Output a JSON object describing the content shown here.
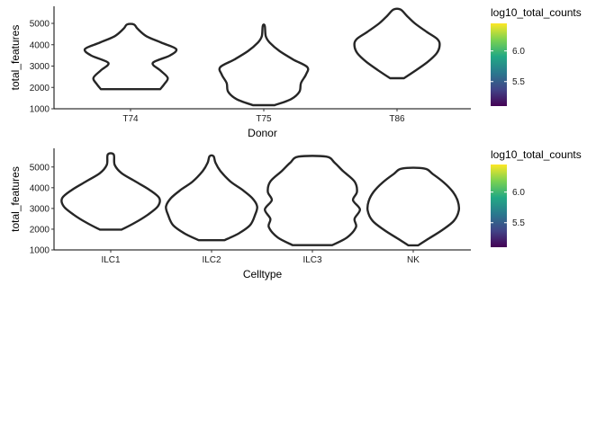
{
  "colors": {
    "violin_stroke": "#262626",
    "axis_line": "#000000",
    "tick_color": "#333333",
    "gradient_stops": [
      "#440154",
      "#414487",
      "#2a788e",
      "#22a884",
      "#7ad151",
      "#fde725"
    ]
  },
  "chart_data": [
    {
      "type": "violin",
      "xlabel": "Donor",
      "ylabel": "total_features",
      "categories": [
        "T74",
        "T75",
        "T86"
      ],
      "ylim": [
        1000,
        5800
      ],
      "yticks": [
        1000,
        2000,
        3000,
        4000,
        5000
      ],
      "grid": false,
      "legend": {
        "title": "log10_total_counts",
        "colorscale": "viridis",
        "ticks": [
          6.0,
          5.5
        ],
        "range": [
          5.1,
          6.45
        ],
        "placement": "right"
      },
      "violins": [
        {
          "category": "T74",
          "ymin": 1920,
          "ymax": 4950,
          "profile": [
            [
              1920,
              0.6
            ],
            [
              2150,
              0.68
            ],
            [
              2450,
              0.75
            ],
            [
              2800,
              0.6
            ],
            [
              3150,
              0.45
            ],
            [
              3500,
              0.8
            ],
            [
              3800,
              0.92
            ],
            [
              4100,
              0.62
            ],
            [
              4400,
              0.32
            ],
            [
              4750,
              0.14
            ],
            [
              4950,
              0.07
            ]
          ]
        },
        {
          "category": "T75",
          "ymin": 1170,
          "ymax": 4880,
          "profile": [
            [
              1170,
              0.22
            ],
            [
              1450,
              0.55
            ],
            [
              1800,
              0.72
            ],
            [
              2200,
              0.75
            ],
            [
              2600,
              0.85
            ],
            [
              2950,
              0.88
            ],
            [
              3300,
              0.6
            ],
            [
              3700,
              0.32
            ],
            [
              4100,
              0.12
            ],
            [
              4400,
              0.04
            ],
            [
              4880,
              0.02
            ]
          ]
        },
        {
          "category": "T86",
          "ymin": 2430,
          "ymax": 5650,
          "profile": [
            [
              2430,
              0.14
            ],
            [
              2800,
              0.38
            ],
            [
              3200,
              0.62
            ],
            [
              3600,
              0.8
            ],
            [
              3950,
              0.86
            ],
            [
              4250,
              0.82
            ],
            [
              4600,
              0.6
            ],
            [
              5000,
              0.36
            ],
            [
              5350,
              0.2
            ],
            [
              5650,
              0.07
            ]
          ]
        }
      ]
    },
    {
      "type": "violin",
      "xlabel": "Celltype",
      "ylabel": "total_features",
      "categories": [
        "ILC1",
        "ILC2",
        "ILC3",
        "NK"
      ],
      "ylim": [
        1000,
        5900
      ],
      "yticks": [
        1000,
        2000,
        3000,
        4000,
        5000
      ],
      "grid": false,
      "legend": {
        "title": "log10_total_counts",
        "colorscale": "viridis",
        "ticks": [
          6.0,
          5.5
        ],
        "range": [
          5.1,
          6.45
        ],
        "placement": "right"
      },
      "violins": [
        {
          "category": "ILC1",
          "ymin": 1980,
          "ymax": 5600,
          "profile": [
            [
              1980,
              0.22
            ],
            [
              2300,
              0.48
            ],
            [
              2700,
              0.75
            ],
            [
              3100,
              0.95
            ],
            [
              3500,
              0.98
            ],
            [
              3900,
              0.78
            ],
            [
              4300,
              0.5
            ],
            [
              4700,
              0.22
            ],
            [
              5100,
              0.08
            ],
            [
              5600,
              0.06
            ]
          ]
        },
        {
          "category": "ILC2",
          "ymin": 1470,
          "ymax": 5520,
          "profile": [
            [
              1470,
              0.26
            ],
            [
              1800,
              0.55
            ],
            [
              2200,
              0.78
            ],
            [
              2700,
              0.88
            ],
            [
              3100,
              0.92
            ],
            [
              3500,
              0.82
            ],
            [
              3900,
              0.62
            ],
            [
              4300,
              0.38
            ],
            [
              4800,
              0.18
            ],
            [
              5200,
              0.08
            ],
            [
              5520,
              0.04
            ]
          ]
        },
        {
          "category": "ILC3",
          "ymin": 1230,
          "ymax": 5500,
          "profile": [
            [
              1230,
              0.4
            ],
            [
              1600,
              0.7
            ],
            [
              2100,
              0.88
            ],
            [
              2500,
              0.85
            ],
            [
              2950,
              0.96
            ],
            [
              3400,
              0.82
            ],
            [
              3800,
              0.9
            ],
            [
              4300,
              0.85
            ],
            [
              4800,
              0.62
            ],
            [
              5200,
              0.45
            ],
            [
              5500,
              0.28
            ]
          ]
        },
        {
          "category": "NK",
          "ymin": 1220,
          "ymax": 4930,
          "profile": [
            [
              1220,
              0.1
            ],
            [
              1500,
              0.28
            ],
            [
              1950,
              0.58
            ],
            [
              2400,
              0.82
            ],
            [
              2900,
              0.92
            ],
            [
              3350,
              0.9
            ],
            [
              3800,
              0.8
            ],
            [
              4250,
              0.62
            ],
            [
              4650,
              0.4
            ],
            [
              4930,
              0.22
            ]
          ]
        }
      ]
    }
  ]
}
